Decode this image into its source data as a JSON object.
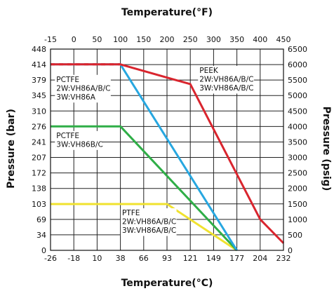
{
  "chart_data": {
    "type": "line",
    "title_top": "Temperature(°F)",
    "xlabel": "Temperature(°C)",
    "ylabel_left": "Pressure (bar)",
    "ylabel_right": "Pressure (psig)",
    "x_unit": "°C",
    "y_unit": "bar",
    "xlim": [
      -26,
      232
    ],
    "ylim": [
      0,
      448
    ],
    "x_ticks_bottom": [
      "-26",
      "-18",
      "10",
      "38",
      "66",
      "93",
      "121",
      "149",
      "177",
      "204",
      "232"
    ],
    "x_ticks_top": [
      "-15",
      "0",
      "50",
      "100",
      "150",
      "200",
      "250",
      "300",
      "350",
      "400",
      "450"
    ],
    "y_ticks_left": [
      "448",
      "414",
      "379",
      "345",
      "310",
      "276",
      "241",
      "207",
      "172",
      "138",
      "103",
      "69",
      "34",
      "0"
    ],
    "y_ticks_right": [
      "6500",
      "6000",
      "5500",
      "5000",
      "4500",
      "4000",
      "3500",
      "3000",
      "2500",
      "2000",
      "1500",
      "1000",
      "500",
      "0"
    ],
    "grid": true,
    "series": [
      {
        "color": "#d9252e",
        "dashed_segment_end_x": 38,
        "x": [
          -26,
          38,
          121,
          204,
          232
        ],
        "y": [
          414,
          414,
          370,
          69,
          16
        ]
      },
      {
        "color": "#27a7e0",
        "x": [
          -26,
          38,
          177
        ],
        "y": [
          414,
          414,
          0
        ]
      },
      {
        "color": "#2fae47",
        "x": [
          -26,
          38,
          177
        ],
        "y": [
          276,
          276,
          0
        ]
      },
      {
        "color": "#f0e22f",
        "x": [
          -26,
          93,
          177
        ],
        "y": [
          103,
          103,
          0
        ]
      }
    ],
    "annotations": [
      {
        "lines": [
          "PEEK",
          "2W:VH86A/B/C",
          "3W:VH86A/B/C"
        ],
        "at_x": 132,
        "at_y": 395
      },
      {
        "lines": [
          "PCTFE",
          "2W:VH86A/B/C",
          "3W:VH86A"
        ],
        "at_x": -24,
        "at_y": 375
      },
      {
        "lines": [
          "PCTFE",
          "3W:VH86B/C"
        ],
        "at_x": -24,
        "at_y": 250
      },
      {
        "lines": [
          "PTFE",
          "2W:VH86A/B/C",
          "3W:VH86A/B/C"
        ],
        "at_x": 40,
        "at_y": 78
      }
    ]
  }
}
